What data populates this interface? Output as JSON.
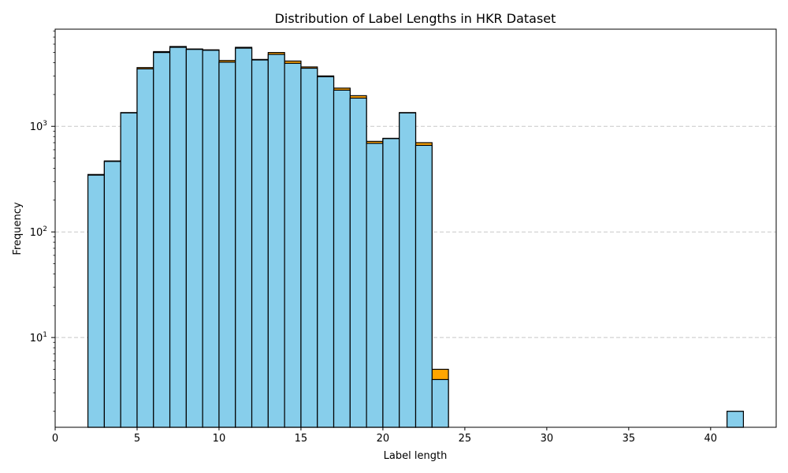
{
  "chart_data": {
    "type": "bar",
    "title": "Distribution of Label Lengths in HKR Dataset",
    "xlabel": "Label length",
    "ylabel": "Frequency",
    "xlim": [
      0,
      44
    ],
    "ylim_log10": [
      0.15,
      3.92
    ],
    "yscale": "log",
    "grid": "y-dashed",
    "x_ticks": [
      0,
      5,
      10,
      15,
      20,
      25,
      30,
      35,
      40
    ],
    "y_ticks": [
      {
        "value": 10,
        "base": "10",
        "exp": "1"
      },
      {
        "value": 100,
        "base": "10",
        "exp": "2"
      },
      {
        "value": 1000,
        "base": "10",
        "exp": "3"
      }
    ],
    "bin_width": 1,
    "colors": {
      "front": "#87ceeb",
      "back": "#ffa500",
      "edge": "#000000",
      "grid": "#c8c8c8"
    },
    "series": [
      {
        "color": "#ffa500",
        "bins": [
          {
            "x": 2,
            "value": 350
          },
          {
            "x": 3,
            "value": 470
          },
          {
            "x": 4,
            "value": 1350
          },
          {
            "x": 5,
            "value": 3600
          },
          {
            "x": 6,
            "value": 5100
          },
          {
            "x": 7,
            "value": 5700
          },
          {
            "x": 8,
            "value": 5400
          },
          {
            "x": 9,
            "value": 5300
          },
          {
            "x": 10,
            "value": 4200
          },
          {
            "x": 11,
            "value": 5600
          },
          {
            "x": 12,
            "value": 4300
          },
          {
            "x": 13,
            "value": 5000
          },
          {
            "x": 14,
            "value": 4150
          },
          {
            "x": 15,
            "value": 3650
          },
          {
            "x": 16,
            "value": 3000
          },
          {
            "x": 17,
            "value": 2300
          },
          {
            "x": 18,
            "value": 1950
          },
          {
            "x": 19,
            "value": 720
          },
          {
            "x": 20,
            "value": 770
          },
          {
            "x": 21,
            "value": 1350
          },
          {
            "x": 22,
            "value": 700
          },
          {
            "x": 23,
            "value": 5
          },
          {
            "x": 41,
            "value": 2
          }
        ]
      },
      {
        "color": "#87ceeb",
        "bins": [
          {
            "x": 2,
            "value": 345
          },
          {
            "x": 3,
            "value": 465
          },
          {
            "x": 4,
            "value": 1340
          },
          {
            "x": 5,
            "value": 3500
          },
          {
            "x": 6,
            "value": 5000
          },
          {
            "x": 7,
            "value": 5600
          },
          {
            "x": 8,
            "value": 5350
          },
          {
            "x": 9,
            "value": 5250
          },
          {
            "x": 10,
            "value": 4050
          },
          {
            "x": 11,
            "value": 5500
          },
          {
            "x": 12,
            "value": 4250
          },
          {
            "x": 13,
            "value": 4800
          },
          {
            "x": 14,
            "value": 3950
          },
          {
            "x": 15,
            "value": 3550
          },
          {
            "x": 16,
            "value": 2950
          },
          {
            "x": 17,
            "value": 2200
          },
          {
            "x": 18,
            "value": 1850
          },
          {
            "x": 19,
            "value": 690
          },
          {
            "x": 20,
            "value": 765
          },
          {
            "x": 21,
            "value": 1340
          },
          {
            "x": 22,
            "value": 660
          },
          {
            "x": 23,
            "value": 4
          },
          {
            "x": 41,
            "value": 2
          }
        ]
      }
    ]
  }
}
